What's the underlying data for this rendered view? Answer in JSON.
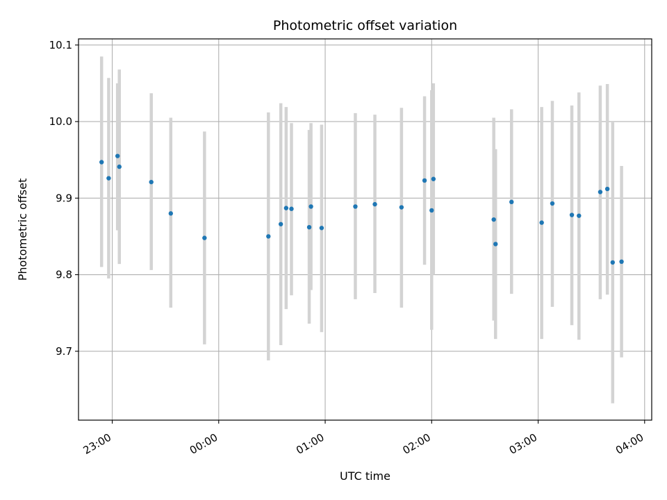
{
  "chart_data": {
    "type": "scatter",
    "title": "Photometric offset variation",
    "xlabel": "UTC time",
    "ylabel": "Photometric offset",
    "x_unit": "UTC datetime",
    "xlim": [
      "2023-01-01T22:41:00",
      "2023-01-02T04:04:00"
    ],
    "ylim": [
      9.61,
      10.108
    ],
    "x_ticks": [
      {
        "value": "2023-01-01T23:00:00",
        "label": "23:00"
      },
      {
        "value": "2023-01-02T00:00:00",
        "label": "00:00"
      },
      {
        "value": "2023-01-02T01:00:00",
        "label": "01:00"
      },
      {
        "value": "2023-01-02T02:00:00",
        "label": "02:00"
      },
      {
        "value": "2023-01-02T03:00:00",
        "label": "03:00"
      },
      {
        "value": "2023-01-02T04:00:00",
        "label": "04:00"
      }
    ],
    "y_ticks": [
      9.7,
      9.8,
      9.9,
      10.0,
      10.1
    ],
    "y_tick_labels": [
      "9.7",
      "9.8",
      "9.9",
      "10.0",
      "10.1"
    ],
    "grid": true,
    "marker_color": "#1f77b4",
    "errorbar_color": "#d3d3d3",
    "points": [
      {
        "x": "2023-01-01T22:54:00",
        "y": 9.947,
        "lo": 9.81,
        "hi": 10.085
      },
      {
        "x": "2023-01-01T22:58:00",
        "y": 9.926,
        "lo": 9.795,
        "hi": 10.057
      },
      {
        "x": "2023-01-01T23:03:00",
        "y": 9.955,
        "lo": 9.858,
        "hi": 10.05
      },
      {
        "x": "2023-01-01T23:04:00",
        "y": 9.941,
        "lo": 9.814,
        "hi": 10.068
      },
      {
        "x": "2023-01-01T23:22:00",
        "y": 9.921,
        "lo": 9.806,
        "hi": 10.037
      },
      {
        "x": "2023-01-01T23:33:00",
        "y": 9.88,
        "lo": 9.757,
        "hi": 10.005
      },
      {
        "x": "2023-01-01T23:52:00",
        "y": 9.848,
        "lo": 9.709,
        "hi": 9.987
      },
      {
        "x": "2023-01-02T00:28:00",
        "y": 9.85,
        "lo": 9.688,
        "hi": 10.012
      },
      {
        "x": "2023-01-02T00:35:00",
        "y": 9.866,
        "lo": 9.708,
        "hi": 10.024
      },
      {
        "x": "2023-01-02T00:38:00",
        "y": 9.887,
        "lo": 9.755,
        "hi": 10.019
      },
      {
        "x": "2023-01-02T00:41:00",
        "y": 9.886,
        "lo": 9.773,
        "hi": 9.998
      },
      {
        "x": "2023-01-02T00:51:00",
        "y": 9.862,
        "lo": 9.736,
        "hi": 9.989
      },
      {
        "x": "2023-01-02T00:52:00",
        "y": 9.889,
        "lo": 9.78,
        "hi": 9.998
      },
      {
        "x": "2023-01-02T00:58:00",
        "y": 9.861,
        "lo": 9.725,
        "hi": 9.996
      },
      {
        "x": "2023-01-02T01:17:00",
        "y": 9.889,
        "lo": 9.768,
        "hi": 10.011
      },
      {
        "x": "2023-01-02T01:28:00",
        "y": 9.892,
        "lo": 9.776,
        "hi": 10.009
      },
      {
        "x": "2023-01-02T01:43:00",
        "y": 9.888,
        "lo": 9.757,
        "hi": 10.018
      },
      {
        "x": "2023-01-02T01:56:00",
        "y": 9.923,
        "lo": 9.813,
        "hi": 10.033
      },
      {
        "x": "2023-01-02T02:00:00",
        "y": 9.884,
        "lo": 9.728,
        "hi": 10.041
      },
      {
        "x": "2023-01-02T02:01:00",
        "y": 9.925,
        "lo": 9.8,
        "hi": 10.05
      },
      {
        "x": "2023-01-02T02:35:00",
        "y": 9.872,
        "lo": 9.74,
        "hi": 10.005
      },
      {
        "x": "2023-01-02T02:36:00",
        "y": 9.84,
        "lo": 9.716,
        "hi": 9.964
      },
      {
        "x": "2023-01-02T02:45:00",
        "y": 9.895,
        "lo": 9.775,
        "hi": 10.016
      },
      {
        "x": "2023-01-02T03:02:00",
        "y": 9.868,
        "lo": 9.716,
        "hi": 10.019
      },
      {
        "x": "2023-01-02T03:08:00",
        "y": 9.893,
        "lo": 9.758,
        "hi": 10.027
      },
      {
        "x": "2023-01-02T03:19:00",
        "y": 9.878,
        "lo": 9.734,
        "hi": 10.021
      },
      {
        "x": "2023-01-02T03:23:00",
        "y": 9.877,
        "lo": 9.715,
        "hi": 10.038
      },
      {
        "x": "2023-01-02T03:35:00",
        "y": 9.908,
        "lo": 9.768,
        "hi": 10.047
      },
      {
        "x": "2023-01-02T03:39:00",
        "y": 9.912,
        "lo": 9.774,
        "hi": 10.049
      },
      {
        "x": "2023-01-02T03:42:00",
        "y": 9.816,
        "lo": 9.632,
        "hi": 9.999
      },
      {
        "x": "2023-01-02T03:47:00",
        "y": 9.817,
        "lo": 9.692,
        "hi": 9.942
      }
    ]
  }
}
